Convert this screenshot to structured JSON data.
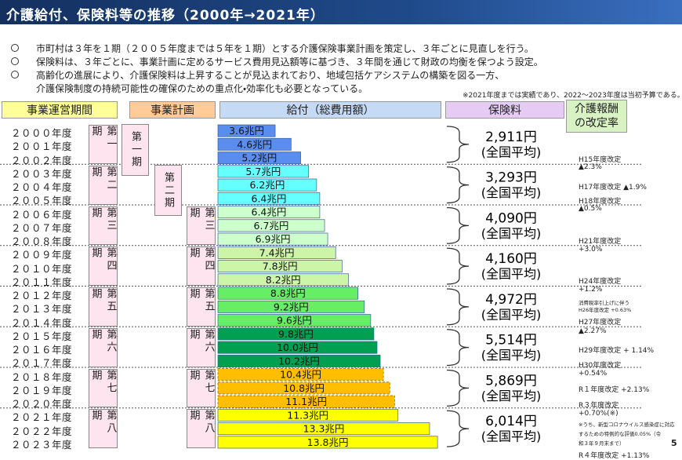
{
  "header": {
    "title": "介護給付、保険料等の推移（2000年→2021年）"
  },
  "bullets": [
    [
      "市町村は３年を１期（２００５年度までは５年を１期）とする介護保険事業計画を策定し、３年ごとに見直しを行う。"
    ],
    [
      "保険料は、３年ごとに、事業計画に定めるサービス費用見込額等に基づき、３年間を通じて財政の均衡を保つよう設定。"
    ],
    [
      "高齢化の進展により、介護保険料は上昇することが見込まれており、地域包括ケアシステムの構築を図る一方、",
      "介護保険制度の持続可能性の確保のための重点化・効率化も必要となっている。"
    ]
  ],
  "note": "※2021年度までは実績であり、2022～2023年度は当初予算である。",
  "columns": {
    "period": "事業運営期間",
    "plan": "事業計画",
    "benefit": "給付（総費用額）",
    "premium": "保険料",
    "revision": [
      "介護報酬",
      "の改定率"
    ]
  },
  "periods": [
    "第一期",
    "第二期",
    "第三期",
    "第四期",
    "第五期",
    "第六期",
    "第七期",
    "第八期"
  ],
  "plans": [
    "第一期",
    "第二期",
    "第三期",
    "第四期",
    "第五期",
    "第六期",
    "第七期",
    "第八期"
  ],
  "chart_data": {
    "type": "bar",
    "orientation": "horizontal",
    "categories": [
      "２０００年度",
      "２００１年度",
      "２００２年度",
      "２００３年度",
      "２００４年度",
      "２００５年度",
      "２００６年度",
      "２００７年度",
      "２００８年度",
      "２００９年度",
      "２０１０年度",
      "２０１１年度",
      "２０１２年度",
      "２０１３年度",
      "２０１４年度",
      "２０１５年度",
      "２０１６年度",
      "２０１７年度",
      "２０１８年度",
      "２０１９年度",
      "２０２０年度",
      "２０２１年度",
      "２０２２年度",
      "２０２３年度"
    ],
    "values": [
      3.6,
      4.6,
      5.2,
      5.7,
      6.2,
      6.4,
      6.4,
      6.7,
      6.9,
      7.4,
      7.8,
      8.2,
      8.8,
      9.2,
      9.6,
      9.8,
      10.0,
      10.2,
      10.4,
      10.8,
      11.1,
      11.3,
      13.3,
      13.8
    ],
    "value_labels": [
      "3.6兆円",
      "4.6兆円",
      "5.2兆円",
      "5.7兆円",
      "6.2兆円",
      "6.4兆円",
      "6.4兆円",
      "6.7兆円",
      "6.9兆円",
      "7.4兆円",
      "7.8兆円",
      "8.2兆円",
      "8.8兆円",
      "9.2兆円",
      "9.6兆円",
      "9.8兆円",
      "10.0兆円",
      "10.2兆円",
      "10.4兆円",
      "10.8兆円",
      "11.1兆円",
      "11.3兆円",
      "13.3兆円",
      "13.8兆円"
    ],
    "colors": [
      "#5b8def",
      "#5b8def",
      "#5b8def",
      "#66ffff",
      "#66ffff",
      "#66ffff",
      "#ccffcc",
      "#ccffcc",
      "#ccffcc",
      "#ccf5a8",
      "#ccf5a8",
      "#ccf5a8",
      "#66ee66",
      "#66ee66",
      "#66ee66",
      "#00a050",
      "#00a050",
      "#00a050",
      "#ffbf00",
      "#ffbf00",
      "#ffbf00",
      "#ffff00",
      "#ffff00",
      "#ffff00"
    ]
  },
  "premiums": [
    {
      "amount": "2,911円",
      "note": "(全国平均)"
    },
    {
      "amount": "3,293円",
      "note": "(全国平均)"
    },
    {
      "amount": "4,090円",
      "note": "(全国平均)"
    },
    {
      "amount": "4,160円",
      "note": "(全国平均)"
    },
    {
      "amount": "4,972円",
      "note": "(全国平均)"
    },
    {
      "amount": "5,514円",
      "note": "(全国平均)"
    },
    {
      "amount": "5,869円",
      "note": "(全国平均)"
    },
    {
      "amount": "6,014円",
      "note": "(全国平均)"
    }
  ],
  "revisions": [
    "H15年度改定",
    "▲2.3%",
    "H17年度改定 ▲1.9%",
    "H18年度改定",
    "▲0.5%",
    "H21年度改定",
    "+3.0%",
    "H24年度改定",
    "+1.2%",
    "消費税率引上げに伴う",
    "H26年度改定 +0.63%",
    "H27年度改定",
    "▲2.27%",
    "H29年度改定 + 1.14%",
    "H30年度改定",
    "+0.54%",
    "R１年度改定 +2.13%",
    "R３年度改定",
    "+0.70%(※)",
    "※うち、新型コロナウイルス感染症に対応",
    "するための特例的な評価0.05%（令",
    "和３年９月末まで）",
    "R４年度改定 +1.13%"
  ],
  "page_number": "5"
}
